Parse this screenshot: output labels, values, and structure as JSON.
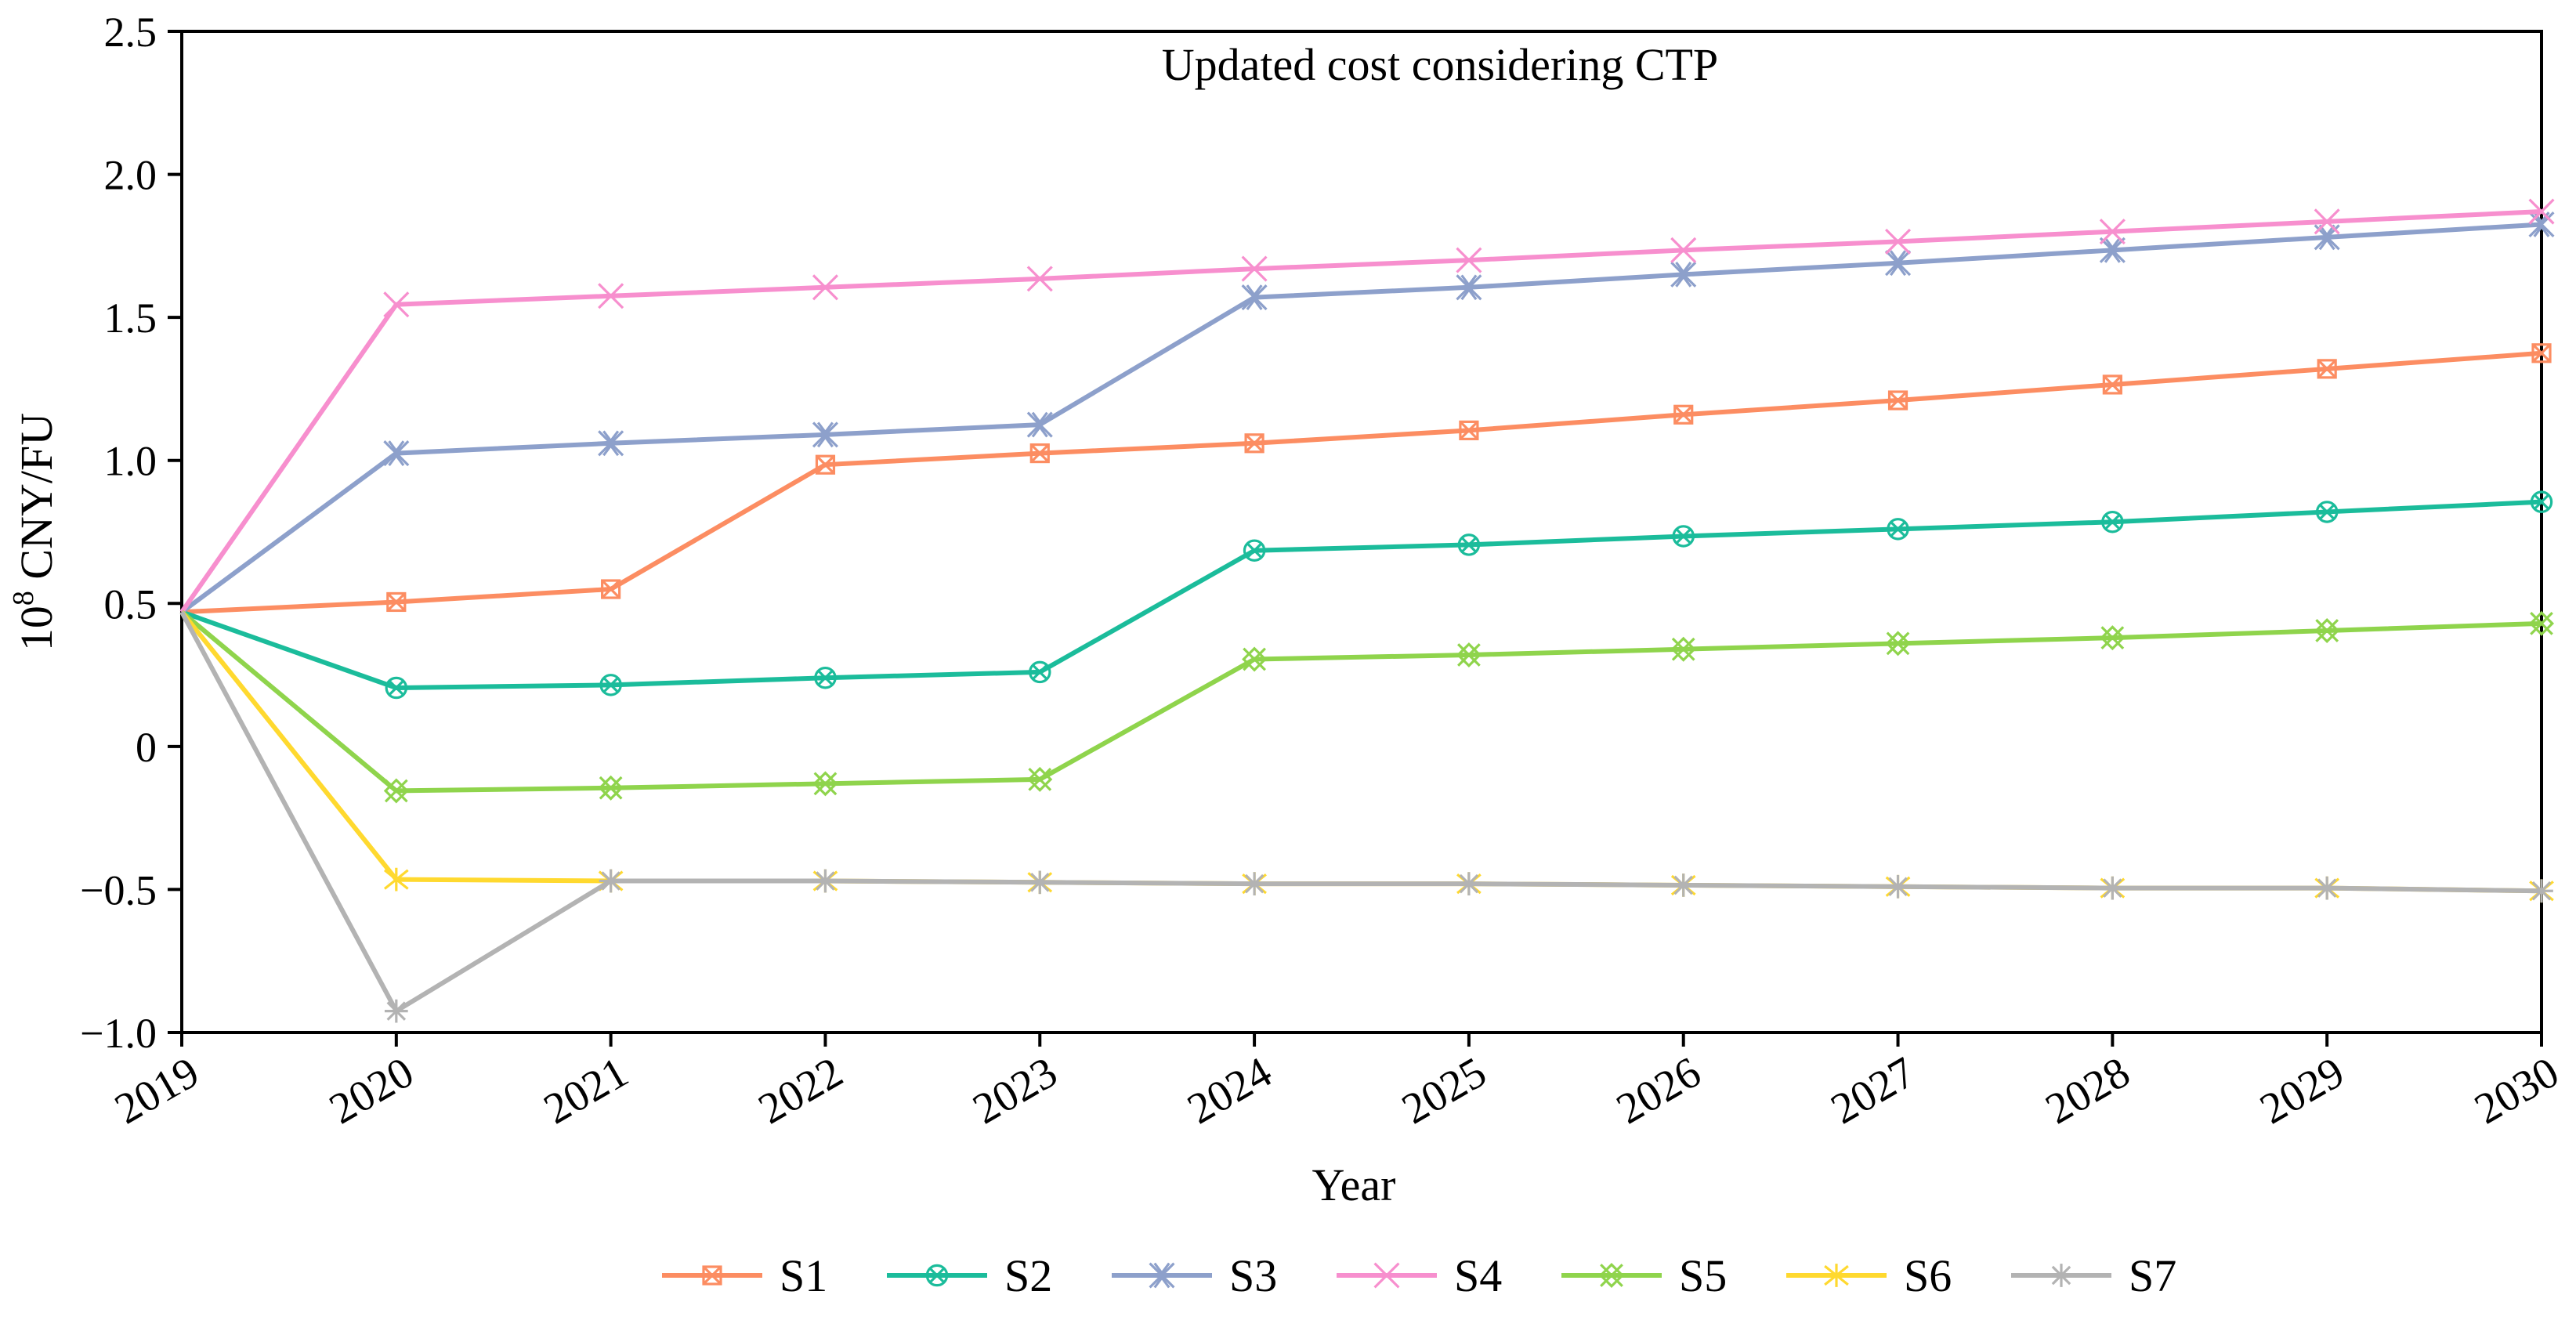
{
  "chart_data": {
    "type": "line",
    "title": "Updated cost considering CTP",
    "xlabel": "Year",
    "ylabel": "10",
    "ylabel_superscript": "8",
    "ylabel_unit": " CNY/FU",
    "x": [
      2019,
      2020,
      2021,
      2022,
      2023,
      2024,
      2025,
      2026,
      2027,
      2028,
      2029,
      2030
    ],
    "xlim": [
      2019,
      2030
    ],
    "ylim": [
      -1.0,
      2.5
    ],
    "yticks": [
      -1.0,
      -0.5,
      0,
      0.5,
      1.0,
      1.5,
      2.0,
      2.5
    ],
    "ytick_labels": [
      "−1.0",
      "−0.5",
      "0",
      "0.5",
      "1.0",
      "1.5",
      "2.0",
      "2.5"
    ],
    "grid": false,
    "legend_position": "bottom-center",
    "series": [
      {
        "name": "S1",
        "color": "#fc8d62",
        "marker": "square-cross",
        "values": [
          0.47,
          0.505,
          0.55,
          0.985,
          1.025,
          1.06,
          1.105,
          1.16,
          1.21,
          1.265,
          1.32,
          1.375
        ]
      },
      {
        "name": "S2",
        "color": "#1bbc9b",
        "marker": "circle-cross",
        "values": [
          0.47,
          0.205,
          0.215,
          0.24,
          0.26,
          0.685,
          0.705,
          0.735,
          0.76,
          0.785,
          0.82,
          0.855
        ]
      },
      {
        "name": "S3",
        "color": "#8da0cb",
        "marker": "star-x",
        "values": [
          0.47,
          1.025,
          1.06,
          1.09,
          1.125,
          1.57,
          1.605,
          1.65,
          1.69,
          1.735,
          1.78,
          1.825
        ]
      },
      {
        "name": "S4",
        "color": "#f78fce",
        "marker": "x",
        "values": [
          0.47,
          1.545,
          1.575,
          1.605,
          1.635,
          1.67,
          1.7,
          1.735,
          1.765,
          1.8,
          1.835,
          1.87
        ]
      },
      {
        "name": "S5",
        "color": "#8fd44c",
        "marker": "box-x",
        "values": [
          0.47,
          -0.155,
          -0.145,
          -0.13,
          -0.115,
          0.305,
          0.32,
          0.34,
          0.36,
          0.38,
          0.405,
          0.43
        ]
      },
      {
        "name": "S6",
        "color": "#ffd92f",
        "marker": "star",
        "values": [
          0.47,
          -0.465,
          -0.47,
          -0.47,
          -0.475,
          -0.48,
          -0.48,
          -0.485,
          -0.49,
          -0.495,
          -0.495,
          -0.505
        ]
      },
      {
        "name": "S7",
        "color": "#b3b3b3",
        "marker": "asterisk",
        "values": [
          0.47,
          -0.925,
          -0.47,
          -0.47,
          -0.475,
          -0.48,
          -0.48,
          -0.485,
          -0.49,
          -0.495,
          -0.495,
          -0.505
        ]
      }
    ]
  }
}
